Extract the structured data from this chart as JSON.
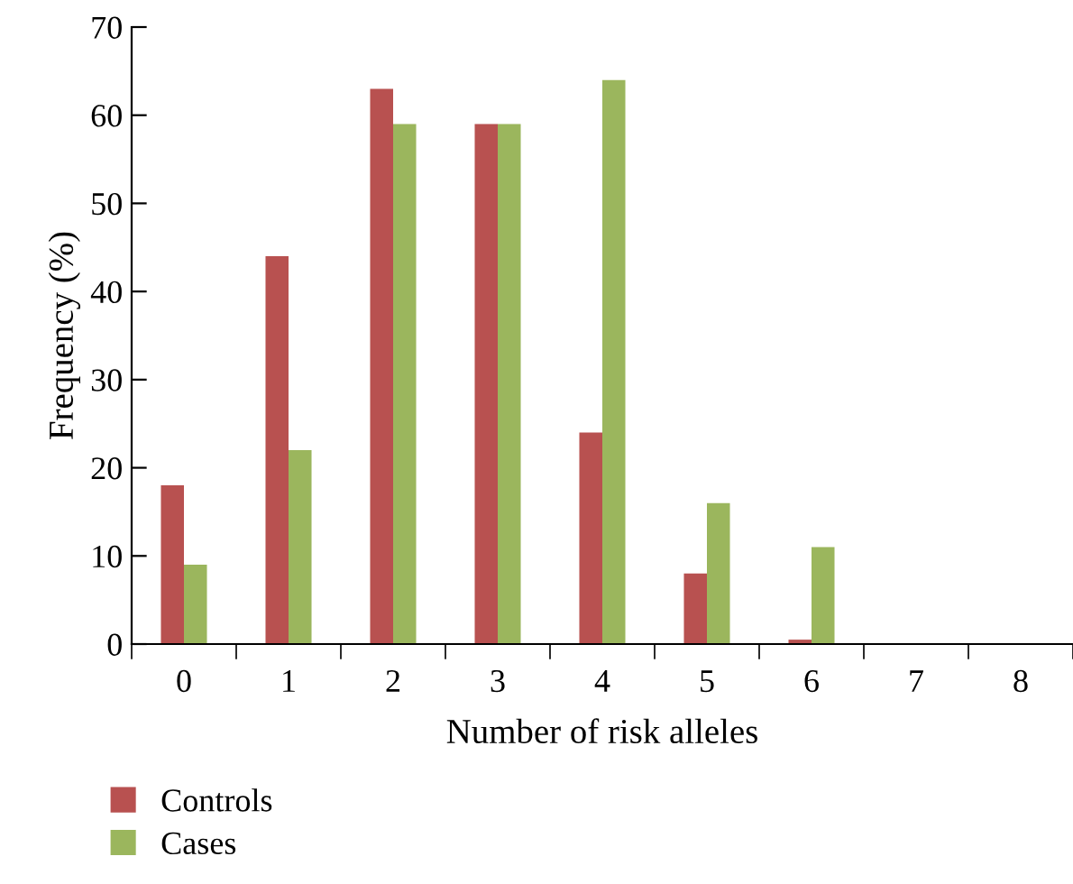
{
  "chart_data": {
    "type": "bar",
    "xlabel": "Number of risk alleles",
    "ylabel": "Frequency (%)",
    "categories": [
      "0",
      "1",
      "2",
      "3",
      "4",
      "5",
      "6",
      "7",
      "8"
    ],
    "series": [
      {
        "name": "Controls",
        "color": "#b85150",
        "values": [
          18,
          44,
          63,
          59,
          24,
          8,
          0.5,
          0,
          0
        ]
      },
      {
        "name": "Cases",
        "color": "#9bb65d",
        "values": [
          9,
          22,
          59,
          59,
          64,
          16,
          11,
          0,
          0
        ]
      }
    ],
    "ylim": [
      0,
      70
    ],
    "yticks": [
      0,
      10,
      20,
      30,
      40,
      50,
      60,
      70
    ],
    "grid": false,
    "legend": "bottom left"
  }
}
